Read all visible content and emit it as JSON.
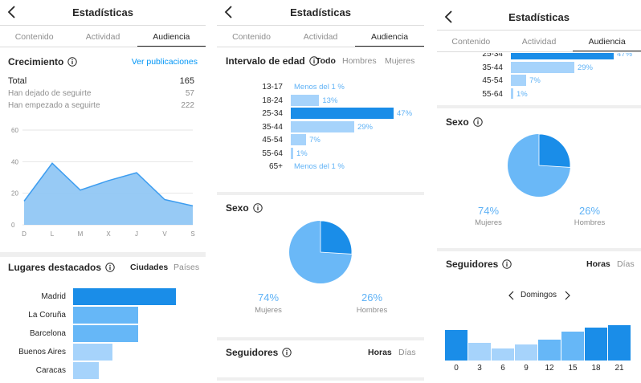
{
  "header": {
    "title": "Estadísticas"
  },
  "tabs": [
    {
      "label": "Contenido"
    },
    {
      "label": "Actividad"
    },
    {
      "label": "Audiencia"
    }
  ],
  "growth": {
    "title": "Crecimiento",
    "link": "Ver publicaciones",
    "total_label": "Total",
    "total_value": "165",
    "lost_label": "Han dejado de seguirte",
    "lost_value": "57",
    "gained_label": "Han empezado a seguirte",
    "gained_value": "222"
  },
  "places": {
    "title": "Lugares destacados",
    "toggle_on": "Ciudades",
    "toggle_off": "Países"
  },
  "age": {
    "title": "Intervalo de edad",
    "filters": [
      "Todo",
      "Hombres",
      "Mujeres"
    ]
  },
  "sex": {
    "title": "Sexo",
    "women_pct": "74%",
    "women_label": "Mujeres",
    "men_pct": "26%",
    "men_label": "Hombres"
  },
  "followers": {
    "title": "Seguidores",
    "toggle_on": "Horas",
    "toggle_off": "Días",
    "day_label": "Domingos"
  },
  "colors": {
    "accent": "#0095f6",
    "bar_dark": "#1a8de8",
    "bar_mid": "#66b7f7",
    "bar_light": "#a6d3fb",
    "area": "#8cc4f4",
    "pie_light": "#6ab8f7",
    "pie_dark": "#1a8de8"
  },
  "chart_data": [
    {
      "type": "area",
      "categories": [
        "D",
        "L",
        "M",
        "X",
        "J",
        "V",
        "S"
      ],
      "values": [
        15,
        39,
        22,
        28,
        33,
        16,
        12
      ],
      "ylim": [
        0,
        60
      ],
      "yticks": [
        "0",
        "20",
        "40",
        "60"
      ],
      "grid": true
    },
    {
      "type": "bar",
      "orientation": "horizontal",
      "categories": [
        "Madrid",
        "La Coruña",
        "Barcelona",
        "Buenos Aires",
        "Caracas"
      ],
      "values": [
        100,
        63,
        63,
        38,
        25
      ]
    },
    {
      "type": "bar",
      "orientation": "horizontal",
      "categories": [
        "13-17",
        "18-24",
        "25-34",
        "35-44",
        "45-54",
        "55-64",
        "65+"
      ],
      "values": [
        0.5,
        13,
        47,
        29,
        7,
        1,
        0.5
      ],
      "value_labels": [
        "Menos del 1 %",
        "13%",
        "47%",
        "29%",
        "7%",
        "1%",
        "Menos del 1 %"
      ]
    },
    {
      "type": "pie",
      "categories": [
        "Mujeres",
        "Hombres"
      ],
      "values": [
        74,
        26
      ]
    },
    {
      "type": "bar",
      "categories": [
        "0",
        "3",
        "6",
        "9",
        "12",
        "15",
        "18",
        "21"
      ],
      "values": [
        73,
        42,
        28,
        38,
        50,
        70,
        78,
        85
      ],
      "ylim": [
        0,
        100
      ]
    }
  ]
}
